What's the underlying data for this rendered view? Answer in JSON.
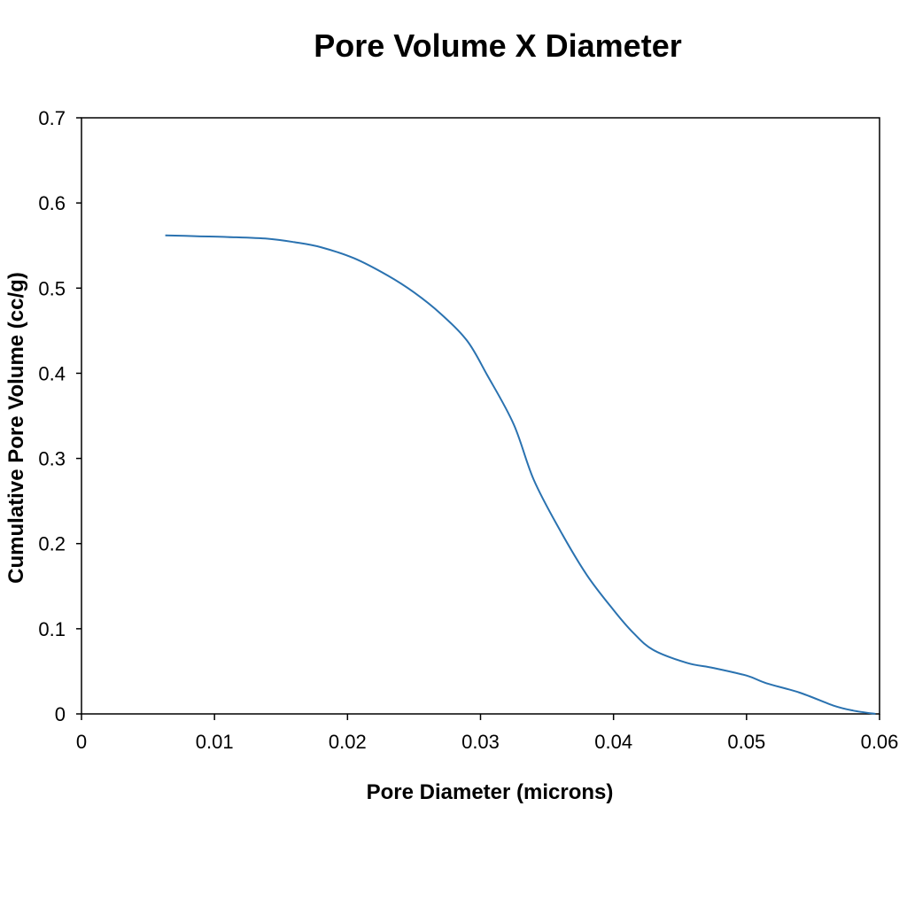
{
  "chart_data": {
    "type": "line",
    "title": "Pore Volume X Diameter",
    "xlabel": "Pore Diameter (microns)",
    "ylabel": "Cumulative Pore Volume (cc/g)",
    "xlim": [
      0,
      0.06
    ],
    "ylim": [
      0,
      0.7
    ],
    "x_ticks": [
      "0",
      "0.01",
      "0.02",
      "0.03",
      "0.04",
      "0.05",
      "0.06"
    ],
    "y_ticks": [
      "0",
      "0.1",
      "0.2",
      "0.3",
      "0.4",
      "0.5",
      "0.6",
      "0.7"
    ],
    "grid": false,
    "legend": "none",
    "series": [
      {
        "color": "#2a72b0",
        "x": [
          0.0063,
          0.0085,
          0.011,
          0.014,
          0.016,
          0.018,
          0.0205,
          0.023,
          0.025,
          0.027,
          0.029,
          0.0305,
          0.0325,
          0.034,
          0.036,
          0.038,
          0.04,
          0.0415,
          0.043,
          0.0455,
          0.0475,
          0.05,
          0.0515,
          0.054,
          0.0565,
          0.058,
          0.0597
        ],
        "y": [
          0.562,
          0.561,
          0.56,
          0.558,
          0.554,
          0.548,
          0.535,
          0.515,
          0.495,
          0.47,
          0.438,
          0.398,
          0.34,
          0.275,
          0.215,
          0.163,
          0.122,
          0.095,
          0.075,
          0.06,
          0.054,
          0.045,
          0.036,
          0.025,
          0.01,
          0.004,
          0.0
        ]
      }
    ]
  }
}
